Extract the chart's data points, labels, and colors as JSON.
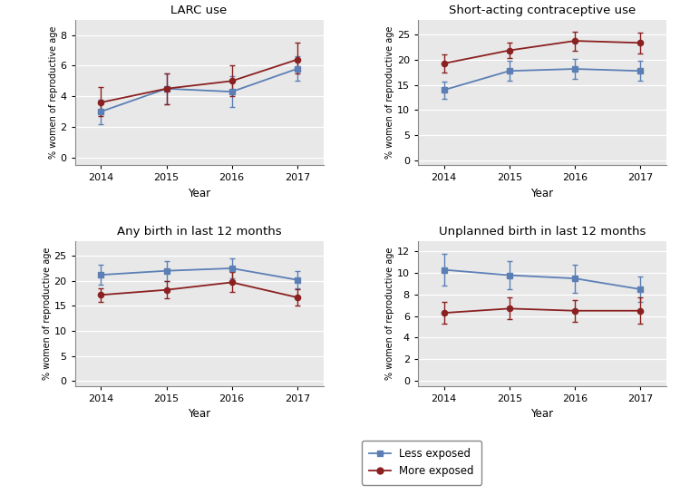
{
  "years": [
    2014,
    2015,
    2016,
    2017
  ],
  "plots": [
    {
      "title": "LARC use",
      "ylabel": "% women of reproductive age",
      "xlabel": "Year",
      "ylim": [
        -0.5,
        9
      ],
      "yticks": [
        0,
        2,
        4,
        6,
        8
      ],
      "less_exposed": {
        "mean": [
          3.0,
          4.5,
          4.3,
          5.8
        ],
        "ci_lo": [
          2.2,
          3.5,
          3.3,
          5.0
        ],
        "ci_hi": [
          3.8,
          5.5,
          5.3,
          6.6
        ]
      },
      "more_exposed": {
        "mean": [
          3.6,
          4.5,
          5.0,
          6.4
        ],
        "ci_lo": [
          2.7,
          3.5,
          4.0,
          5.5
        ],
        "ci_hi": [
          4.6,
          5.5,
          6.0,
          7.5
        ]
      }
    },
    {
      "title": "Short-acting contraceptive use",
      "ylabel": "% women of reproductive age",
      "xlabel": "Year",
      "ylim": [
        -1,
        28
      ],
      "yticks": [
        0,
        5,
        10,
        15,
        20,
        25
      ],
      "less_exposed": {
        "mean": [
          14.0,
          17.8,
          18.2,
          17.8
        ],
        "ci_lo": [
          12.3,
          15.8,
          16.2,
          15.8
        ],
        "ci_hi": [
          15.7,
          19.8,
          20.2,
          19.8
        ]
      },
      "more_exposed": {
        "mean": [
          19.3,
          21.9,
          23.8,
          23.4
        ],
        "ci_lo": [
          17.5,
          20.3,
          21.9,
          21.3
        ],
        "ci_hi": [
          21.1,
          23.5,
          25.7,
          25.5
        ]
      }
    },
    {
      "title": "Any birth in last 12 months",
      "ylabel": "% women of reproductive age",
      "xlabel": "Year",
      "ylim": [
        -1,
        28
      ],
      "yticks": [
        0,
        5,
        10,
        15,
        20,
        25
      ],
      "less_exposed": {
        "mean": [
          21.2,
          22.0,
          22.5,
          20.2
        ],
        "ci_lo": [
          19.2,
          20.0,
          20.5,
          18.5
        ],
        "ci_hi": [
          23.2,
          24.0,
          24.5,
          22.0
        ]
      },
      "more_exposed": {
        "mean": [
          17.2,
          18.2,
          19.7,
          16.7
        ],
        "ci_lo": [
          15.8,
          16.5,
          17.7,
          15.0
        ],
        "ci_hi": [
          18.6,
          19.9,
          21.7,
          18.4
        ]
      }
    },
    {
      "title": "Unplanned birth in last 12 months",
      "ylabel": "% women of reproductive age",
      "xlabel": "Year",
      "ylim": [
        -0.5,
        13
      ],
      "yticks": [
        0,
        2,
        4,
        6,
        8,
        10,
        12
      ],
      "less_exposed": {
        "mean": [
          10.3,
          9.8,
          9.5,
          8.5
        ],
        "ci_lo": [
          8.8,
          8.5,
          8.2,
          7.3
        ],
        "ci_hi": [
          11.8,
          11.1,
          10.8,
          9.7
        ]
      },
      "more_exposed": {
        "mean": [
          6.3,
          6.7,
          6.5,
          6.5
        ],
        "ci_lo": [
          5.3,
          5.7,
          5.5,
          5.3
        ],
        "ci_hi": [
          7.3,
          7.7,
          7.5,
          7.7
        ]
      }
    }
  ],
  "legend": {
    "less_exposed_label": "Less exposed",
    "more_exposed_label": "More exposed",
    "less_exposed_color": "#5B7FB5",
    "more_exposed_color": "#8B2020"
  },
  "plot_bg": "#E8E8E8",
  "fig_bg": "#FFFFFF",
  "grid_color": "#FFFFFF"
}
